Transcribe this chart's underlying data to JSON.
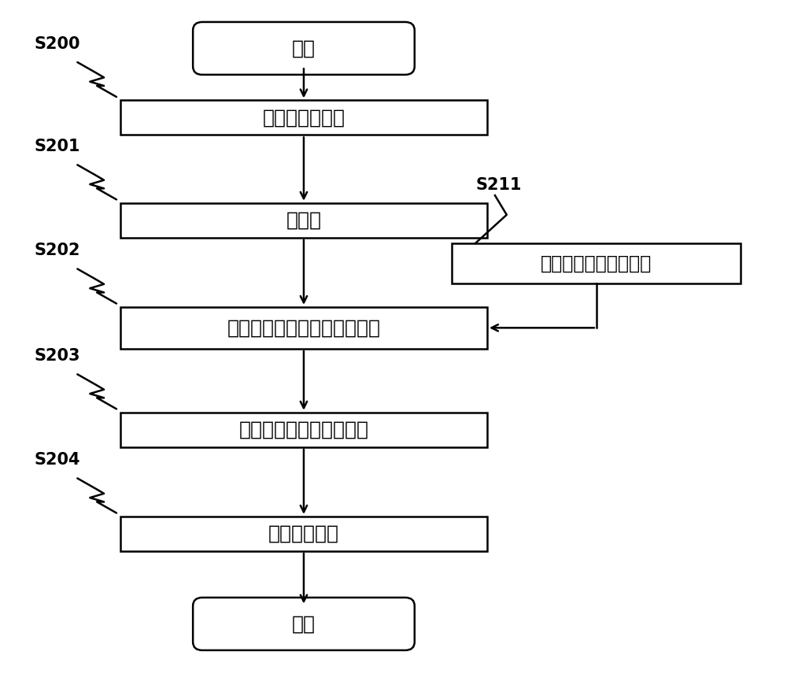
{
  "bg_color": "#ffffff",
  "text_color": "#000000",
  "box_edge_color": "#000000",
  "box_face_color": "#ffffff",
  "line_color": "#000000",
  "start_end_label": [
    "开始",
    "结束"
  ],
  "boxes": [
    {
      "label": "摄像条件的设定",
      "step": "S200"
    },
    {
      "label": "预扫描",
      "step": "S201"
    },
    {
      "label": "从表算出摄像层面位置校正量",
      "step": "S202"
    },
    {
      "label": "反映在正式摄像层面位置",
      "step": "S203"
    },
    {
      "label": "执行正式摄像",
      "step": "S204"
    }
  ],
  "side_box": {
    "label": "用传感器进行位移测量",
    "step": "S211"
  },
  "font_size_main": 18,
  "font_size_step": 15,
  "font_size_side": 17,
  "figsize": [
    10.0,
    8.89
  ]
}
